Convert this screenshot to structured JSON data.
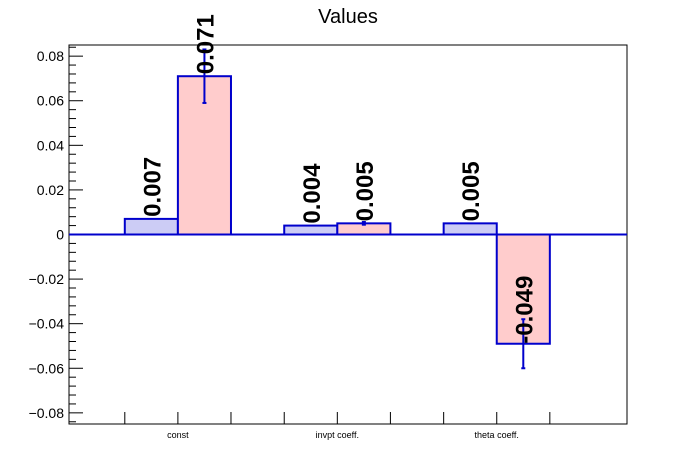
{
  "chart_data": {
    "type": "bar",
    "title": "Values",
    "xlabel": "",
    "ylabel": "",
    "categories": [
      "const",
      "invpt coeff.",
      "theta coeff."
    ],
    "ylim": [
      -0.085,
      0.085
    ],
    "yticks": [
      -0.08,
      -0.06,
      -0.04,
      -0.02,
      0,
      0.02,
      0.04,
      0.06,
      0.08
    ],
    "ytick_labels": [
      "−0.08",
      "−0.06",
      "−0.04",
      "−0.02",
      "0",
      "0.02",
      "0.04",
      "0.06",
      "0.08"
    ],
    "grid": false,
    "series": [
      {
        "values": [
          0.007,
          0.004,
          0.005
        ],
        "labels": [
          "0.007",
          "0.004",
          "0.005"
        ],
        "errors": [
          0,
          0,
          0
        ],
        "fill": "#ccccf5",
        "stroke": "#0000cc"
      },
      {
        "values": [
          0.071,
          0.005,
          -0.049
        ],
        "labels": [
          "0.071",
          "0.005",
          "-0.049"
        ],
        "errors": [
          0.012,
          0.0006,
          0.011
        ],
        "fill": "#ffcccc",
        "stroke": "#0000cc"
      }
    ]
  }
}
